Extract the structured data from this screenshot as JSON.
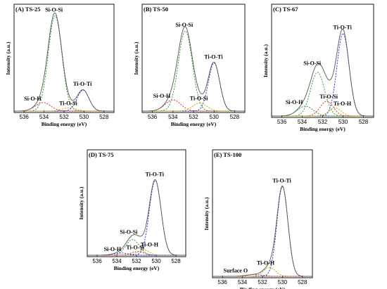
{
  "colors": {
    "envelope": "#555555",
    "peak1": "#2e9a2e",
    "peak2": "#2b2bd6",
    "peak3": "#d22a2a",
    "peak4": "#c4a200",
    "baseline": "#333333"
  },
  "chart_data": [
    {
      "type": "line",
      "title": "(A) TS-25",
      "xlabel": "Binding energy (eV)",
      "ylabel": "Intensity (a.u.)",
      "xlim": [
        537,
        527
      ],
      "x_ticks": [
        536,
        534,
        532,
        530,
        528
      ],
      "x_reversed": true,
      "ylim": [
        0,
        1.08
      ],
      "peaks": [
        {
          "label": "Si-O-Si",
          "center": 532.9,
          "height": 1.0,
          "fwhm": 1.6,
          "color": "#2e9a2e",
          "show_label": true
        },
        {
          "label": "Ti-O-Ti",
          "center": 530.1,
          "height": 0.22,
          "fwhm": 1.4,
          "color": "#2b2bd6",
          "show_label": true
        },
        {
          "label": "Si-O-H",
          "center": 534.1,
          "height": 0.09,
          "fwhm": 1.8,
          "color": "#d22a2a",
          "show_label": true
        },
        {
          "label": "Ti-O-Si",
          "center": 531.5,
          "height": 0.035,
          "fwhm": 1.6,
          "color": "#c4a200",
          "show_label": true
        }
      ]
    },
    {
      "type": "line",
      "title": "(B) TS-50",
      "xlabel": "Binding energy (eV)",
      "ylabel": "Intensity (a.u.)",
      "xlim": [
        537,
        527
      ],
      "x_ticks": [
        536,
        534,
        532,
        530,
        528
      ],
      "x_reversed": true,
      "ylim": [
        0,
        1.08
      ],
      "peaks": [
        {
          "label": "Si-O-Si",
          "center": 532.8,
          "height": 1.0,
          "fwhm": 1.6,
          "color": "#2e9a2e",
          "show_label": true
        },
        {
          "label": "Ti-O-Ti",
          "center": 530.0,
          "height": 0.6,
          "fwhm": 1.3,
          "color": "#2b2bd6",
          "show_label": true
        },
        {
          "label": "Si-O-H",
          "center": 534.0,
          "height": 0.14,
          "fwhm": 1.8,
          "color": "#d22a2a",
          "show_label": true
        },
        {
          "label": "Ti-O-Si",
          "center": 531.4,
          "height": 0.1,
          "fwhm": 1.6,
          "color": "#c4a200",
          "show_label": true
        }
      ]
    },
    {
      "type": "line",
      "title": "(C) TS-67",
      "xlabel": "Binding energy (eV)",
      "ylabel": "Intensity (a.u.)",
      "xlim": [
        537,
        527
      ],
      "x_ticks": [
        536,
        534,
        532,
        530,
        528
      ],
      "x_reversed": true,
      "ylim": [
        0,
        1.08
      ],
      "peaks": [
        {
          "label": "Ti-O-Ti",
          "center": 530.0,
          "height": 1.0,
          "fwhm": 1.4,
          "color": "#2b2bd6",
          "show_label": true
        },
        {
          "label": "Si-O-Si",
          "center": 532.5,
          "height": 0.53,
          "fwhm": 1.6,
          "color": "#2e9a2e",
          "show_label": true
        },
        {
          "label": "Si-O-H",
          "center": 533.7,
          "height": 0.12,
          "fwhm": 1.8,
          "color": "#2e9a2e",
          "show_label": true
        },
        {
          "label": "Ti-O-Si",
          "center": 531.6,
          "height": 0.18,
          "fwhm": 1.5,
          "color": "#d22a2a",
          "show_label": true
        },
        {
          "label": "Ti-O-H",
          "center": 530.8,
          "height": 0.1,
          "fwhm": 1.4,
          "color": "#c4a200",
          "show_label": true
        }
      ]
    },
    {
      "type": "line",
      "title": "(D) TS-75",
      "xlabel": "Binding energy (eV)",
      "ylabel": "Intensity (a.u.)",
      "xlim": [
        537,
        527
      ],
      "x_ticks": [
        536,
        534,
        532,
        530,
        528
      ],
      "x_reversed": true,
      "ylim": [
        0,
        1.08
      ],
      "peaks": [
        {
          "label": "Ti-O-Ti",
          "center": 530.1,
          "height": 1.0,
          "fwhm": 1.4,
          "color": "#2b2bd6",
          "show_label": true
        },
        {
          "label": "Si-O-Si",
          "center": 532.4,
          "height": 0.21,
          "fwhm": 1.6,
          "color": "#2e9a2e",
          "show_label": true
        },
        {
          "label": "Ti-O-H",
          "center": 531.3,
          "height": 0.07,
          "fwhm": 1.4,
          "color": "#c4a200",
          "show_label": true
        },
        {
          "label": "Ti-O-Si",
          "center": 531.9,
          "height": 0.05,
          "fwhm": 1.5,
          "color": "#d22a2a",
          "show_label": true
        },
        {
          "label": "Si-O-H",
          "center": 533.6,
          "height": 0.03,
          "fwhm": 1.8,
          "color": "#2b2bd6",
          "show_label": true
        }
      ]
    },
    {
      "type": "line",
      "title": "(E) TS-100",
      "xlabel": "Binding energy (eV)",
      "ylabel": "Intensity (a.u.)",
      "xlim": [
        537,
        527
      ],
      "x_ticks": [
        536,
        534,
        532,
        530,
        528
      ],
      "x_reversed": true,
      "ylim": [
        0,
        1.08
      ],
      "peaks": [
        {
          "label": "Ti-O-Ti",
          "center": 530.0,
          "height": 1.0,
          "fwhm": 1.3,
          "color": "#2b2bd6",
          "show_label": true
        },
        {
          "label": "Ti-O-H",
          "center": 531.3,
          "height": 0.1,
          "fwhm": 1.4,
          "color": "#c4a200",
          "show_label": true
        },
        {
          "label": "Surface O",
          "center": 532.8,
          "height": 0.02,
          "fwhm": 1.8,
          "color": "#d22a2a",
          "show_label": true
        }
      ]
    }
  ]
}
